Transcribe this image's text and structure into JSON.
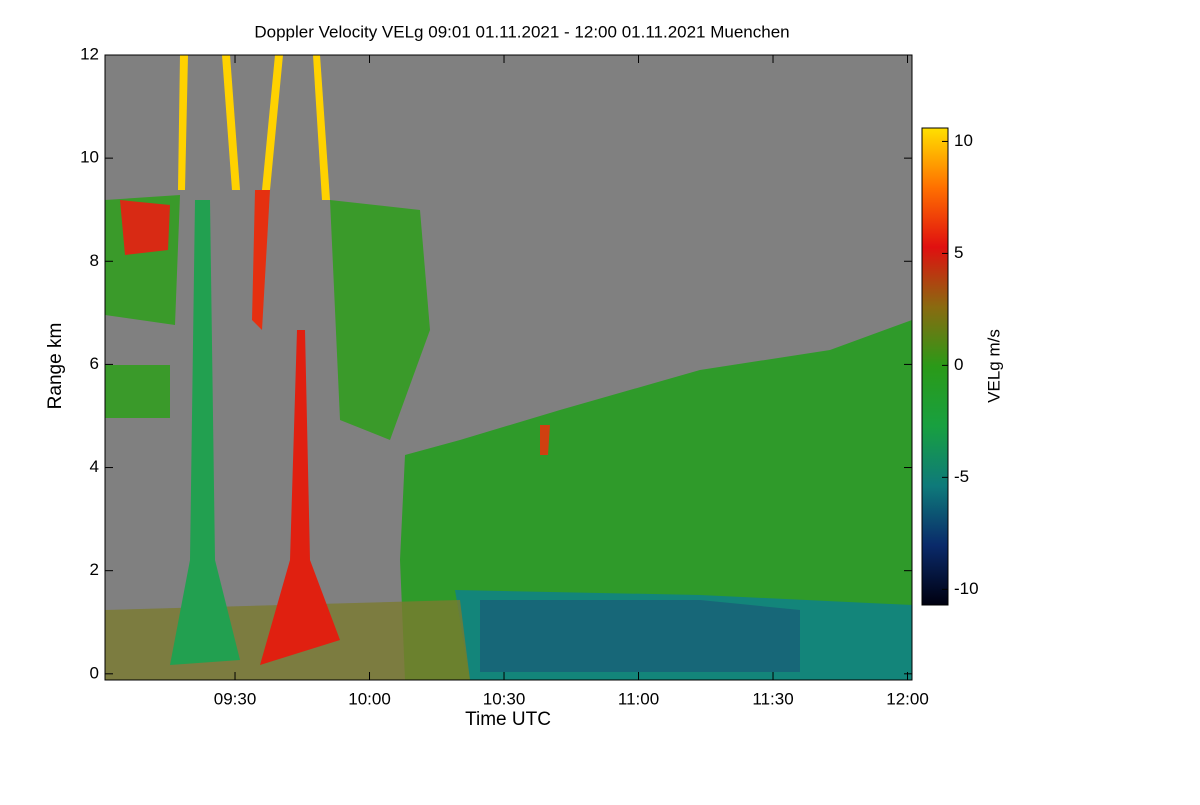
{
  "chart_data": {
    "type": "heatmap",
    "title": "Doppler Velocity VELg   09:01 01.11.2021 - 12:00 01.11.2021 Muenchen",
    "x_label": "Time UTC",
    "y_label": "Range km",
    "colorbar_label": "VELg m/s",
    "xlim": [
      541,
      721
    ],
    "xticks": [
      {
        "value": 570,
        "label": "09:30"
      },
      {
        "value": 600,
        "label": "10:00"
      },
      {
        "value": 630,
        "label": "10:30"
      },
      {
        "value": 660,
        "label": "11:00"
      },
      {
        "value": 690,
        "label": "11:30"
      },
      {
        "value": 720,
        "label": "12:00"
      }
    ],
    "ylim": [
      -0.12,
      12
    ],
    "yticks": [
      0,
      2,
      4,
      6,
      8,
      10,
      12
    ],
    "clim": [
      -10.7,
      10.6
    ],
    "cticks": [
      -10,
      -5,
      0,
      5,
      10
    ],
    "colormap": [
      "#000010",
      "#0a2a6a",
      "#0e7a7a",
      "#18a040",
      "#2a9a18",
      "#8a6a10",
      "#e01010",
      "#ff7000",
      "#ffe000"
    ]
  }
}
